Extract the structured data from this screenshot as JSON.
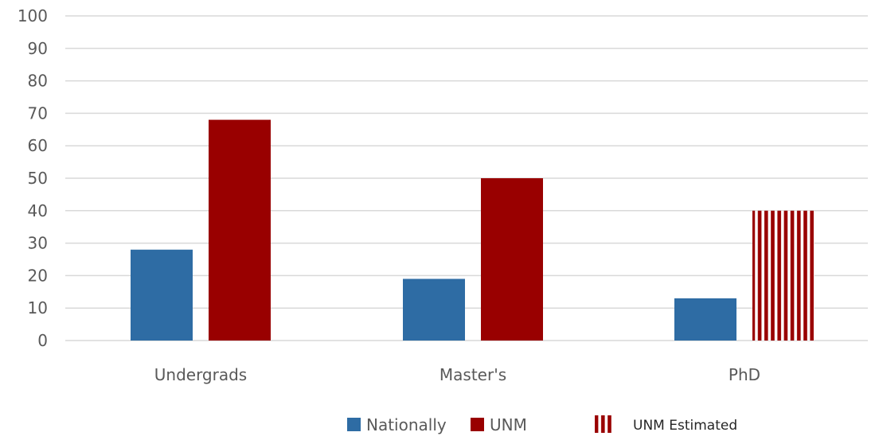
{
  "chart_data": {
    "type": "bar",
    "categories": [
      "Undergrads",
      "Master's",
      "PhD"
    ],
    "series": [
      {
        "name": "Nationally",
        "values": [
          28,
          19,
          13
        ],
        "color": "#2e6ca4",
        "pattern": "solid"
      },
      {
        "name": "UNM",
        "values": [
          68,
          50,
          40
        ],
        "color": "#990000",
        "pattern": "solid",
        "estimated": [
          false,
          false,
          true
        ]
      }
    ],
    "estimated_legend": {
      "name": "UNM Estimated",
      "color": "#990000",
      "pattern": "vertical-stripes"
    },
    "ylim": [
      0,
      100
    ],
    "yticks": [
      0,
      10,
      20,
      30,
      40,
      50,
      60,
      70,
      80,
      90,
      100
    ],
    "grid": true,
    "legend_position": "bottom",
    "gridline_color": "#d9d9d9",
    "title": "",
    "xlabel": "",
    "ylabel": ""
  }
}
